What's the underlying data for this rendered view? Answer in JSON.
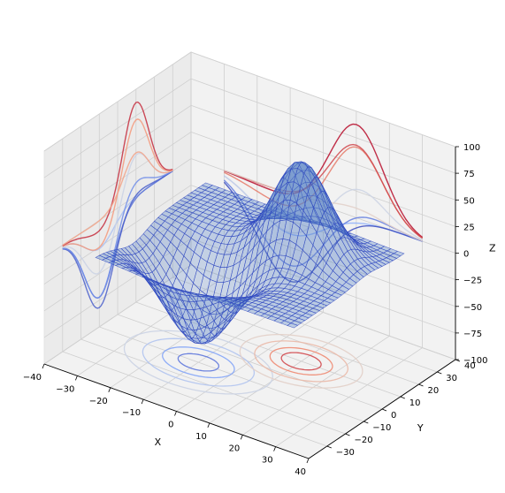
{
  "chart_data": {
    "type": "surface3d",
    "title": "",
    "xlabel": "X",
    "ylabel": "Y",
    "zlabel": "Z",
    "xlim": [
      -40,
      40
    ],
    "ylim": [
      -40,
      40
    ],
    "zlim": [
      -100,
      100
    ],
    "xticks": [
      "−40",
      "−30",
      "−20",
      "−10",
      "0",
      "10",
      "20",
      "30",
      "40"
    ],
    "yticks": [
      "−30",
      "−20",
      "−10",
      "0",
      "10",
      "20",
      "30",
      "40"
    ],
    "zticks": [
      "−100",
      "−75",
      "−50",
      "−25",
      "0",
      "25",
      "50",
      "75",
      "100"
    ],
    "surface": {
      "x_range": [
        -30,
        30
      ],
      "y_range": [
        -30,
        30
      ],
      "grid_rows": 30,
      "peaks": [
        {
          "x": -10,
          "y": -10,
          "amplitude": -82,
          "sigma_x": 10,
          "sigma_y": 8
        },
        {
          "x": 10,
          "y": 10,
          "amplitude": 88,
          "sigma_x": 8,
          "sigma_y": 7
        }
      ],
      "face_color": "#5a84c6",
      "edge_color": "#2e46c0"
    },
    "contour_projections": {
      "offsets": {
        "z": -100,
        "x": -40,
        "y": 40
      },
      "colormap": "coolwarm",
      "levels": 8
    }
  }
}
